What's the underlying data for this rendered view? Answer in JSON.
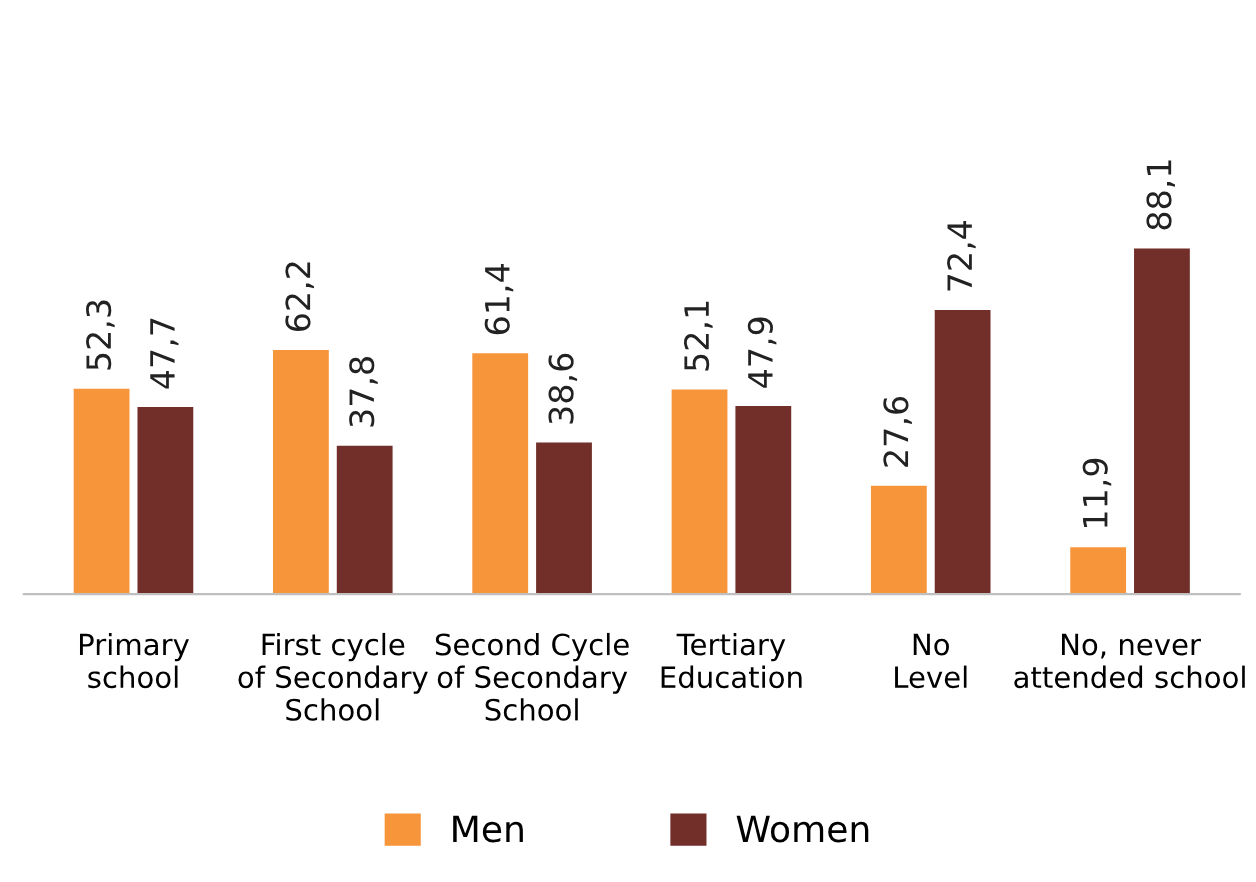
{
  "chart_data": {
    "type": "bar",
    "categories": [
      "Primary\nschool",
      "First cycle\nof Secondary\nSchool",
      "Second Cycle\nof Secondary\nSchool",
      "Tertiary\nEducation",
      "No\nLevel",
      "No, never\nattended school"
    ],
    "series": [
      {
        "name": "Men",
        "color": "#f7953a",
        "values": [
          52.3,
          62.2,
          61.4,
          52.1,
          27.6,
          11.9
        ],
        "value_labels": [
          "52,3",
          "62,2",
          "61,4",
          "52,1",
          "27,6",
          "11,9"
        ]
      },
      {
        "name": "Women",
        "color": "#722f2a",
        "values": [
          47.7,
          37.8,
          38.6,
          47.9,
          72.4,
          88.1
        ],
        "value_labels": [
          "47,7",
          "37,8",
          "38,6",
          "47,9",
          "72,4",
          "88,1"
        ]
      }
    ],
    "legend": "bottom",
    "grid": false
  }
}
